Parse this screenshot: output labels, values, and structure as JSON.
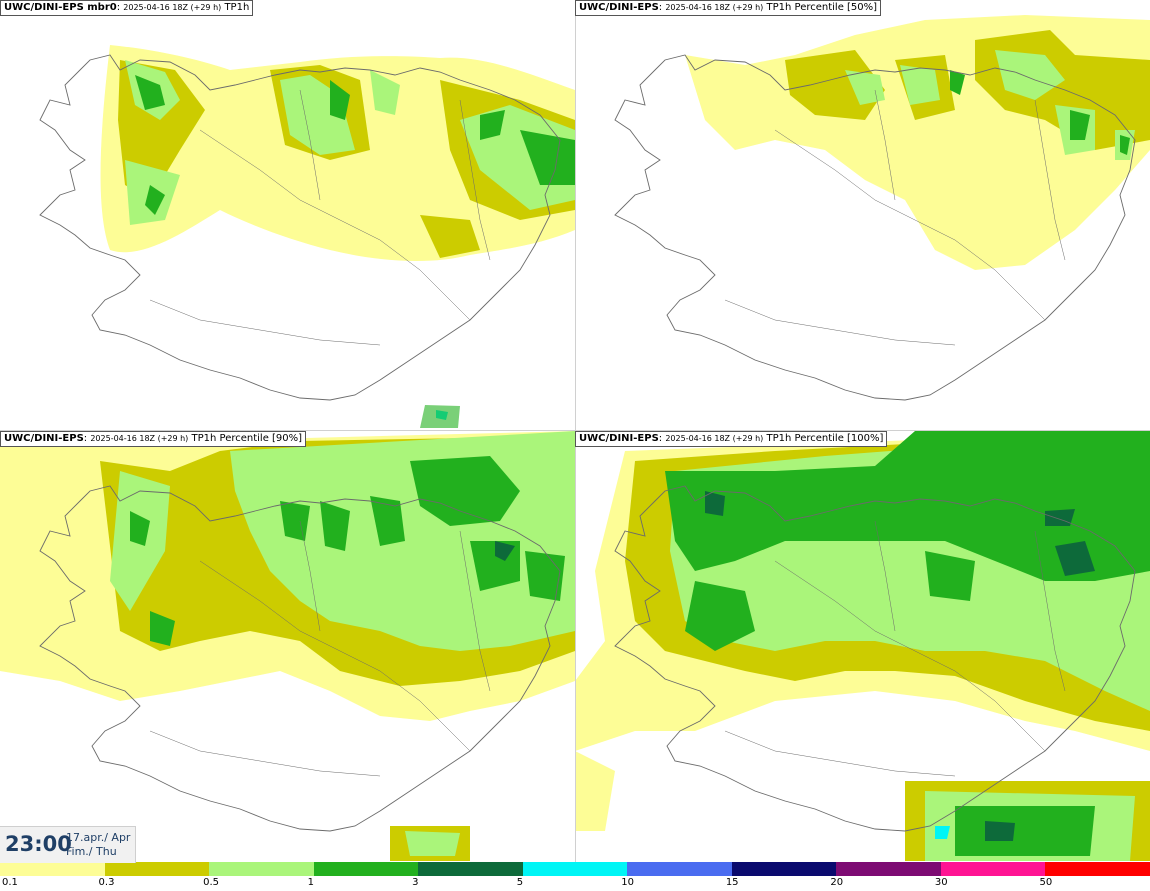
{
  "panels": [
    {
      "model": "UWC/DINI-EPS mbr0",
      "run": "2025-04-16 18Z (+29 h)",
      "field": "TP1h"
    },
    {
      "model": "UWC/DINI-EPS",
      "run": "2025-04-16 18Z (+29 h)",
      "field": "TP1h Percentile [50%]"
    },
    {
      "model": "UWC/DINI-EPS",
      "run": "2025-04-16 18Z (+29 h)",
      "field": "TP1h Percentile [90%]"
    },
    {
      "model": "UWC/DINI-EPS",
      "run": "2025-04-16 18Z (+29 h)",
      "field": "TP1h Percentile [100%]"
    }
  ],
  "valid_time": {
    "time": "23:00",
    "date_line1": "17.apr./ Apr",
    "date_line2": "Fim./ Thu"
  },
  "legend": {
    "labels": [
      "0.1",
      "0.3",
      "0.5",
      "1",
      "3",
      "5",
      "10",
      "15",
      "20",
      "30",
      "50"
    ],
    "colors": [
      "#fdfd96",
      "#cccc00",
      "#aaf57a",
      "#22b01e",
      "#0d6a3a",
      "#00f5f5",
      "#4a6cf0",
      "#0a0a6e",
      "#7d0b73",
      "#ff1493",
      "#ff0000"
    ]
  },
  "map_colors": {
    "coast": "#6b6b6b"
  }
}
